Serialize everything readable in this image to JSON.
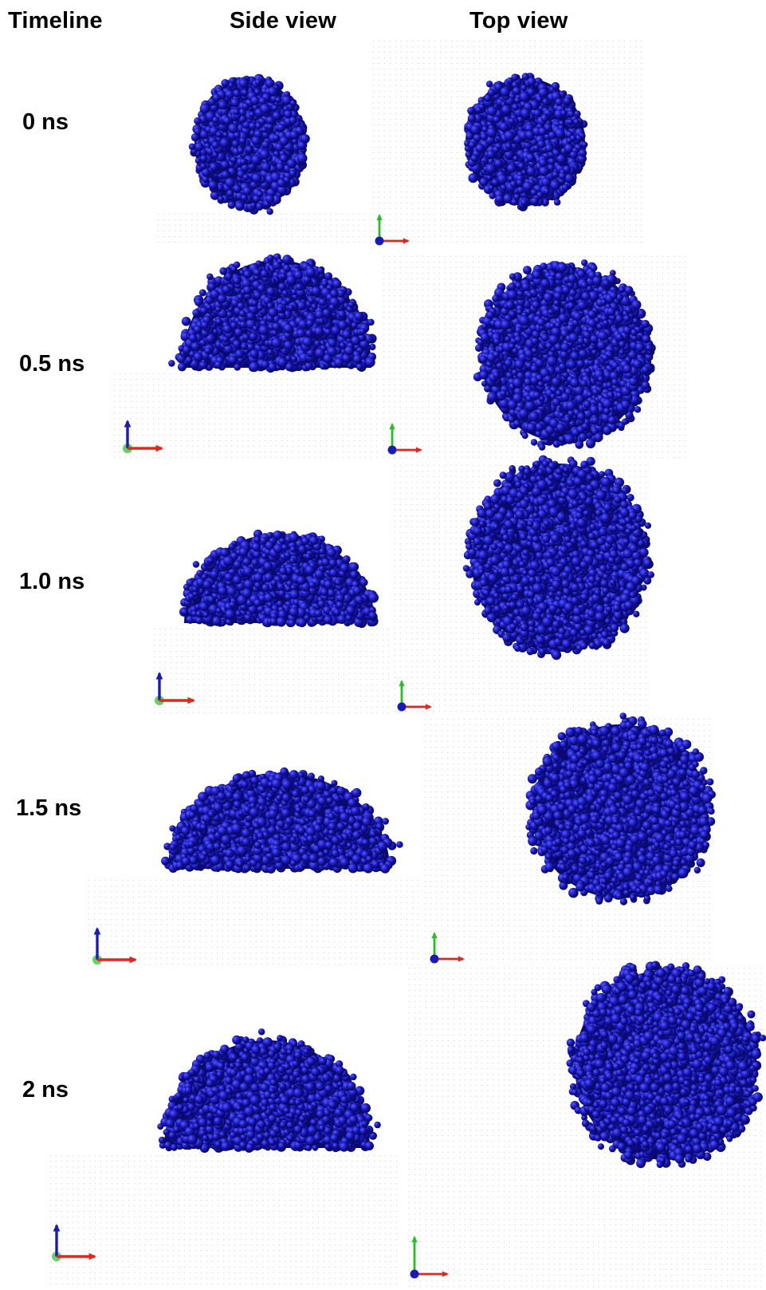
{
  "headers": {
    "timeline": "Timeline",
    "side_view": "Side view",
    "top_view": "Top view"
  },
  "rows": [
    {
      "time": "0 ns"
    },
    {
      "time": "0.5 ns"
    },
    {
      "time": "1.0 ns"
    },
    {
      "time": "1.5 ns"
    },
    {
      "time": "2 ns"
    }
  ],
  "colors": {
    "particle": "#1c1cc8",
    "particle_dark": "#0a0a6e",
    "axis_x": "#e0261e",
    "axis_y": "#22c022",
    "axis_z": "#1a1ab8"
  }
}
